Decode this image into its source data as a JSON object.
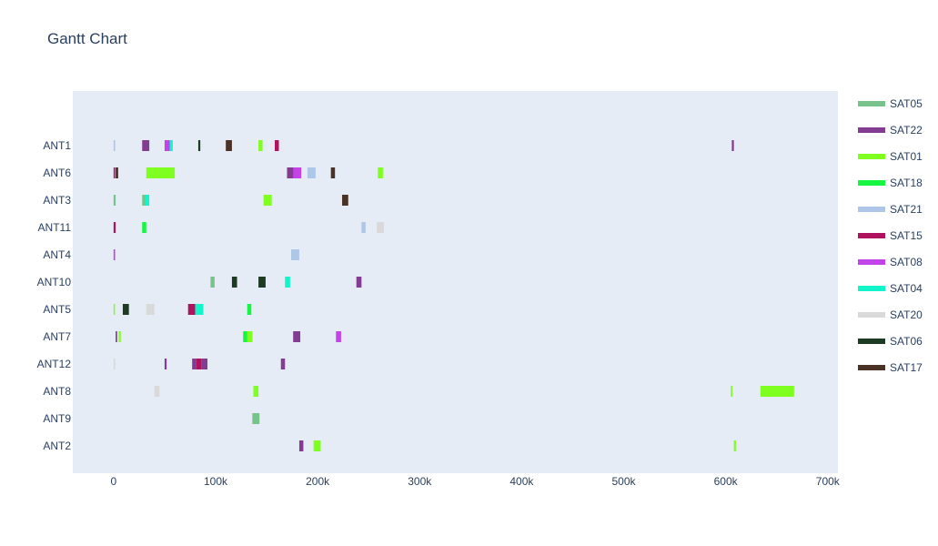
{
  "chart_data": {
    "type": "gantt",
    "title": "Gantt Chart",
    "xlabel": "",
    "ylabel": "",
    "xlim": [
      -40000,
      710000
    ],
    "x_ticks": [
      {
        "value": 0,
        "label": "0"
      },
      {
        "value": 100000,
        "label": "100k"
      },
      {
        "value": 200000,
        "label": "200k"
      },
      {
        "value": 300000,
        "label": "300k"
      },
      {
        "value": 400000,
        "label": "400k"
      },
      {
        "value": 500000,
        "label": "500k"
      },
      {
        "value": 600000,
        "label": "600k"
      },
      {
        "value": 700000,
        "label": "700k"
      }
    ],
    "categories": [
      "ANT1",
      "ANT6",
      "ANT3",
      "ANT11",
      "ANT4",
      "ANT10",
      "ANT5",
      "ANT7",
      "ANT12",
      "ANT8",
      "ANT9",
      "ANT2"
    ],
    "grid": false,
    "legend_position": "right",
    "plot_background": "#e5ecf6",
    "series": [
      {
        "name": "SAT05",
        "color": "#77c38b",
        "tasks": [
          {
            "row": "ANT3",
            "start": 0,
            "end": 2000
          },
          {
            "row": "ANT3",
            "start": 28000,
            "end": 32000
          },
          {
            "row": "ANT10",
            "start": 95000,
            "end": 99000
          },
          {
            "row": "ANT9",
            "start": 136000,
            "end": 143000
          }
        ]
      },
      {
        "name": "SAT22",
        "color": "#833c8f",
        "tasks": [
          {
            "row": "ANT1",
            "start": 28000,
            "end": 35000
          },
          {
            "row": "ANT1",
            "start": 606000,
            "end": 608000
          },
          {
            "row": "ANT6",
            "start": 170000,
            "end": 177000
          },
          {
            "row": "ANT10",
            "start": 238000,
            "end": 243000
          },
          {
            "row": "ANT5",
            "start": 75000,
            "end": 78000
          },
          {
            "row": "ANT7",
            "start": 176000,
            "end": 183000
          },
          {
            "row": "ANT7",
            "start": 2000,
            "end": 3500
          },
          {
            "row": "ANT12",
            "start": 50000,
            "end": 52000
          },
          {
            "row": "ANT12",
            "start": 77000,
            "end": 81000
          },
          {
            "row": "ANT12",
            "start": 86000,
            "end": 92000
          },
          {
            "row": "ANT12",
            "start": 164000,
            "end": 168000
          },
          {
            "row": "ANT2",
            "start": 182000,
            "end": 186000
          }
        ]
      },
      {
        "name": "SAT01",
        "color": "#7fff1f",
        "tasks": [
          {
            "row": "ANT1",
            "start": 142000,
            "end": 146000
          },
          {
            "row": "ANT6",
            "start": 32000,
            "end": 60000
          },
          {
            "row": "ANT6",
            "start": 259000,
            "end": 264000
          },
          {
            "row": "ANT3",
            "start": 147000,
            "end": 155000
          },
          {
            "row": "ANT5",
            "start": 0,
            "end": 1000
          },
          {
            "row": "ANT7",
            "start": 5000,
            "end": 7000
          },
          {
            "row": "ANT7",
            "start": 131000,
            "end": 136000
          },
          {
            "row": "ANT8",
            "start": 137000,
            "end": 142000
          },
          {
            "row": "ANT8",
            "start": 605000,
            "end": 606500
          },
          {
            "row": "ANT8",
            "start": 634000,
            "end": 667000
          },
          {
            "row": "ANT2",
            "start": 196000,
            "end": 203000
          },
          {
            "row": "ANT2",
            "start": 608000,
            "end": 610000
          }
        ]
      },
      {
        "name": "SAT18",
        "color": "#16f541",
        "tasks": [
          {
            "row": "ANT11",
            "start": 28000,
            "end": 32000
          },
          {
            "row": "ANT5",
            "start": 131000,
            "end": 135000
          },
          {
            "row": "ANT7",
            "start": 127000,
            "end": 131000
          }
        ]
      },
      {
        "name": "SAT21",
        "color": "#aec7e8",
        "tasks": [
          {
            "row": "ANT1",
            "start": 0,
            "end": 1500
          },
          {
            "row": "ANT6",
            "start": 190000,
            "end": 198000
          },
          {
            "row": "ANT11",
            "start": 243000,
            "end": 247000
          },
          {
            "row": "ANT4",
            "start": 174000,
            "end": 182000
          }
        ]
      },
      {
        "name": "SAT15",
        "color": "#b0135e",
        "tasks": [
          {
            "row": "ANT1",
            "start": 158000,
            "end": 162000
          },
          {
            "row": "ANT6",
            "start": 0,
            "end": 1500
          },
          {
            "row": "ANT11",
            "start": 0,
            "end": 2000
          },
          {
            "row": "ANT5",
            "start": 73000,
            "end": 80000
          },
          {
            "row": "ANT12",
            "start": 81000,
            "end": 86000
          }
        ]
      },
      {
        "name": "SAT08",
        "color": "#c443e8",
        "tasks": [
          {
            "row": "ANT1",
            "start": 50000,
            "end": 56000
          },
          {
            "row": "ANT6",
            "start": 176000,
            "end": 184000
          },
          {
            "row": "ANT4",
            "start": 0,
            "end": 1500
          },
          {
            "row": "ANT7",
            "start": 218000,
            "end": 223000
          }
        ]
      },
      {
        "name": "SAT04",
        "color": "#12f5cb",
        "tasks": [
          {
            "row": "ANT1",
            "start": 55000,
            "end": 58000
          },
          {
            "row": "ANT3",
            "start": 31000,
            "end": 35000
          },
          {
            "row": "ANT10",
            "start": 168000,
            "end": 173000
          },
          {
            "row": "ANT5",
            "start": 80000,
            "end": 88000
          }
        ]
      },
      {
        "name": "SAT20",
        "color": "#d9d9d9",
        "tasks": [
          {
            "row": "ANT11",
            "start": 258000,
            "end": 265000
          },
          {
            "row": "ANT5",
            "start": 32000,
            "end": 40000
          },
          {
            "row": "ANT12",
            "start": 0,
            "end": 1500
          },
          {
            "row": "ANT8",
            "start": 40000,
            "end": 45000
          }
        ]
      },
      {
        "name": "SAT06",
        "color": "#1d3b22",
        "tasks": [
          {
            "row": "ANT1",
            "start": 83000,
            "end": 85000
          },
          {
            "row": "ANT10",
            "start": 116000,
            "end": 121000
          },
          {
            "row": "ANT10",
            "start": 142000,
            "end": 149000
          },
          {
            "row": "ANT5",
            "start": 9000,
            "end": 15000
          }
        ]
      },
      {
        "name": "SAT17",
        "color": "#4b3226",
        "tasks": [
          {
            "row": "ANT1",
            "start": 110000,
            "end": 116000
          },
          {
            "row": "ANT6",
            "start": 2000,
            "end": 4500
          },
          {
            "row": "ANT6",
            "start": 213000,
            "end": 217000
          },
          {
            "row": "ANT3",
            "start": 224000,
            "end": 230000
          }
        ]
      }
    ]
  }
}
